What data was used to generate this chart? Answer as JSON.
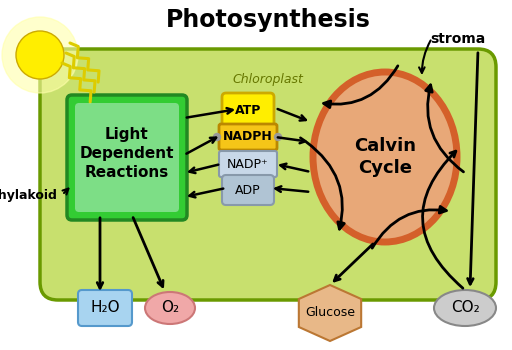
{
  "title": "Photosynthesis",
  "chloroplast_label": "Chloroplast",
  "stroma_label": "stroma",
  "thylakoid_label": "thylakoid",
  "ldr_label": "Light\nDependent\nReactions",
  "calvin_label": "Calvin\nCycle",
  "atp_label": "ATP",
  "nadph_label": "NADPH",
  "nadp_label": "NADP⁺",
  "adp_label": "ADP",
  "h2o_label": "H₂O",
  "o2_label": "O₂",
  "glucose_label": "Glucose",
  "co2_label": "CO₂",
  "bg_color": "#ffffff",
  "chloroplast_fill": "#c8e06e",
  "chloroplast_edge": "#6a9a00",
  "ldr_fill_outer": "#22bb22",
  "ldr_fill_inner": "#99ee99",
  "calvin_fill": "#e8a878",
  "calvin_edge": "#d4602a",
  "atp_fill": "#ffee00",
  "nadph_fill": "#f5c518",
  "nadp_fill": "#c8d8e8",
  "adp_fill": "#b0c4d4",
  "h2o_fill": "#a8d4f0",
  "o2_fill": "#f0a8a8",
  "glucose_fill": "#e8b888",
  "co2_fill": "#cccccc",
  "sun_color": "#ffee00",
  "ray_color": "#ddcc00",
  "arrow_color": "#111111",
  "title_fontsize": 17,
  "chloro_fontsize": 9,
  "ldr_fontsize": 11,
  "calvin_fontsize": 13,
  "mol_fontsize": 10,
  "small_fontsize": 8
}
